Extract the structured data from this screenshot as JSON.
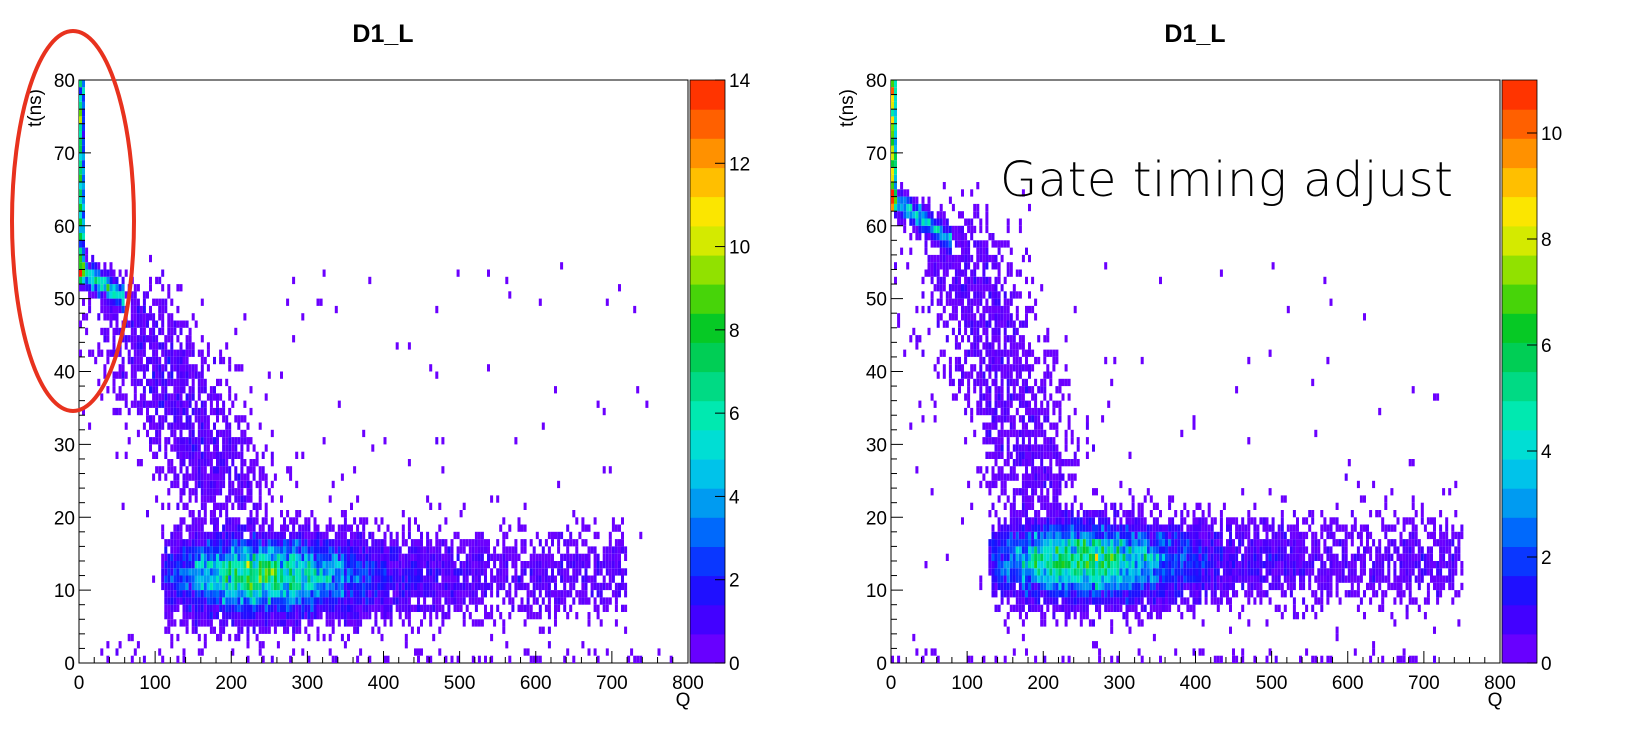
{
  "annotation": "Gate timing adjust",
  "annotation_ellipse_color": "#e8321e",
  "chart_data": [
    {
      "type": "heatmap",
      "title": "D1_L",
      "xlabel": "Q",
      "ylabel": "t(ns)",
      "xlim": [
        0,
        800
      ],
      "ylim": [
        0,
        80
      ],
      "x_ticks": [
        0,
        100,
        200,
        300,
        400,
        500,
        600,
        700,
        800
      ],
      "y_ticks": [
        0,
        10,
        20,
        30,
        40,
        50,
        60,
        70,
        80
      ],
      "colorbar": {
        "min": 0,
        "max": 14,
        "ticks": [
          0,
          2,
          4,
          6,
          8,
          10,
          12,
          14
        ]
      },
      "grid": false,
      "features": {
        "pedestal_band": {
          "x": [
            0,
            6
          ],
          "y": [
            52,
            80
          ]
        },
        "knee": {
          "x": [
            0,
            60
          ],
          "y": [
            50,
            54
          ]
        },
        "diagonal_tail": {
          "from": [
            60,
            50
          ],
          "to": [
            200,
            22
          ]
        },
        "main_cluster": {
          "center": [
            230,
            12
          ],
          "x_range": [
            120,
            430
          ],
          "y_range": [
            5,
            17
          ],
          "peak_count": 14
        },
        "sparse_tail_x_max": 720
      }
    },
    {
      "type": "heatmap",
      "title": "D1_L",
      "xlabel": "Q",
      "ylabel": "t(ns)",
      "xlim": [
        0,
        800
      ],
      "ylim": [
        0,
        80
      ],
      "x_ticks": [
        0,
        100,
        200,
        300,
        400,
        500,
        600,
        700,
        800
      ],
      "y_ticks": [
        0,
        10,
        20,
        30,
        40,
        50,
        60,
        70,
        80
      ],
      "colorbar": {
        "min": 0,
        "max": 11,
        "ticks": [
          0,
          2,
          4,
          6,
          8,
          10
        ]
      },
      "grid": false,
      "features": {
        "pedestal_band": {
          "x": [
            0,
            6
          ],
          "y": [
            62,
            80
          ]
        },
        "knee": {
          "x": [
            0,
            80
          ],
          "y": [
            58,
            64
          ]
        },
        "diagonal_tail": {
          "from": [
            80,
            60
          ],
          "to": [
            200,
            22
          ]
        },
        "main_cluster": {
          "center": [
            240,
            14
          ],
          "x_range": [
            140,
            470
          ],
          "y_range": [
            7,
            19
          ],
          "peak_count": 11
        },
        "sparse_tail_x_max": 750
      }
    }
  ]
}
